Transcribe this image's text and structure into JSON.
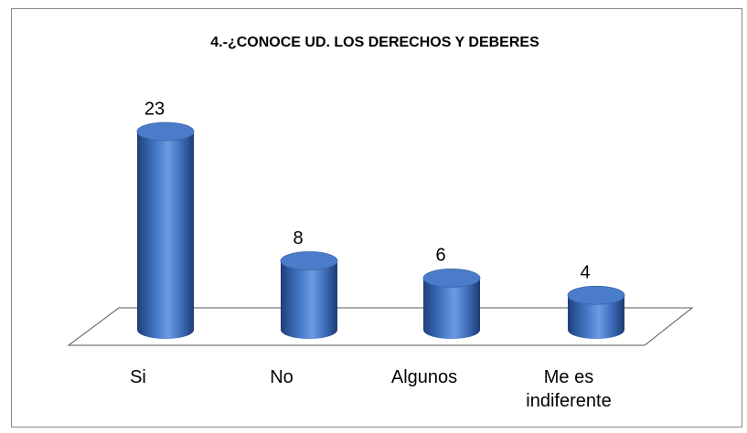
{
  "chart_data": {
    "type": "bar",
    "title": "4.-¿CONOCE UD. LOS DERECHOS Y DEBERES",
    "categories": [
      "Si",
      "No",
      "Algunos",
      "Me es indiferente"
    ],
    "values": [
      23,
      8,
      6,
      4
    ],
    "color": "#4a7cc9"
  }
}
